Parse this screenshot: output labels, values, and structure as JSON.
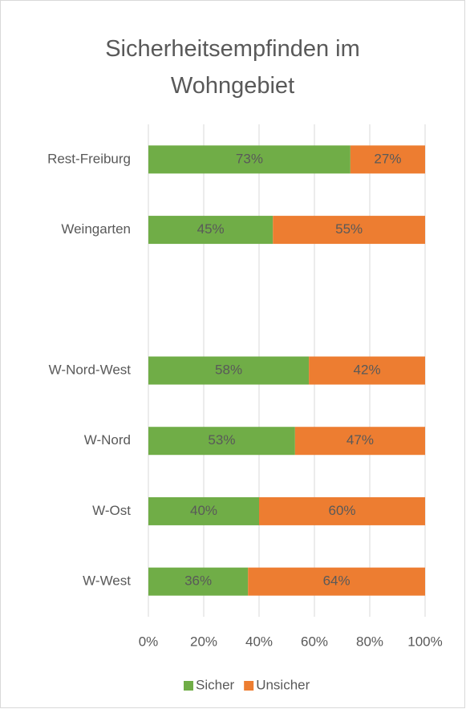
{
  "chart_data": {
    "type": "stacked_barh",
    "title": "Sicherheitsempfinden im Wohngebiet",
    "categories": [
      "Rest-Freiburg",
      "Weingarten",
      null,
      "W-Nord-West",
      "W-Nord",
      "W-Ost",
      "W-West"
    ],
    "series": [
      {
        "name": "Sicher",
        "color": "#70ad47",
        "values": [
          73,
          45,
          null,
          58,
          53,
          40,
          36
        ],
        "value_labels": [
          "73%",
          "45%",
          null,
          "58%",
          "53%",
          "40%",
          "36%"
        ]
      },
      {
        "name": "Unsicher",
        "color": "#ed7d31",
        "values": [
          27,
          55,
          null,
          42,
          47,
          60,
          64
        ],
        "value_labels": [
          "27%",
          "55%",
          null,
          "42%",
          "47%",
          "60%",
          "64%"
        ]
      }
    ],
    "xlim": [
      0,
      100
    ],
    "xticks": [
      {
        "value": 0,
        "label": "0%"
      },
      {
        "value": 20,
        "label": "20%"
      },
      {
        "value": 40,
        "label": "40%"
      },
      {
        "value": 60,
        "label": "60%"
      },
      {
        "value": 80,
        "label": "80%"
      },
      {
        "value": 100,
        "label": "100%"
      }
    ],
    "grid": true,
    "legend": "bottom"
  }
}
